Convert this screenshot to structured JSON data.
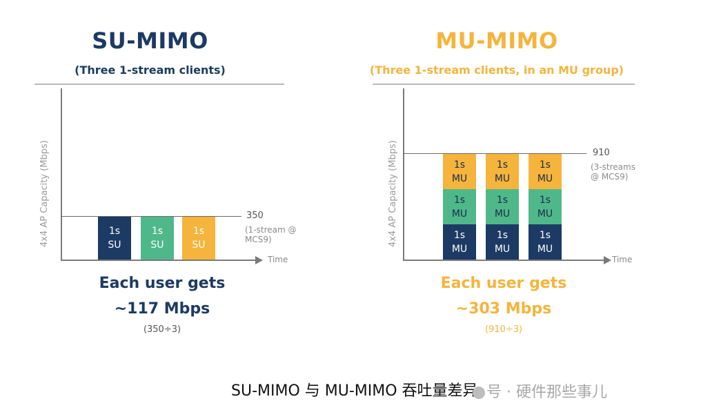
{
  "colors": {
    "navy": "#1c3a63",
    "green": "#4fb88a",
    "orange": "#f5b43c"
  },
  "su": {
    "title": "SU-MIMO",
    "subtitle": "(Three 1-stream clients)",
    "ylabel": "4x4 AP Capacity (Mbps)",
    "xlabel": "Time",
    "ref_value": "350",
    "ref_note": "(1-stream @ MCS9)",
    "blocks": [
      {
        "line1": "1s",
        "line2": "SU"
      },
      {
        "line1": "1s",
        "line2": "SU"
      },
      {
        "line1": "1s",
        "line2": "SU"
      }
    ],
    "stat_line1": "Each user gets",
    "stat_line2": "~117 Mbps",
    "stat_line3": "(350÷3)"
  },
  "mu": {
    "title": "MU-MIMO",
    "subtitle": "(Three 1-stream clients, in an MU group)",
    "ylabel": "4x4 AP Capacity (Mbps)",
    "xlabel": "Time",
    "ref_value": "910",
    "ref_note": "(3-streams @ MCS9)",
    "block_line1": "1s",
    "block_line2": "MU",
    "stat_line1": "Each user gets",
    "stat_line2": "~303 Mbps",
    "stat_line3": "(910÷3)"
  },
  "caption": "SU-MIMO 与 MU-MIMO 吞吐量差异",
  "watermark": "号 · 硬件那些事儿"
}
